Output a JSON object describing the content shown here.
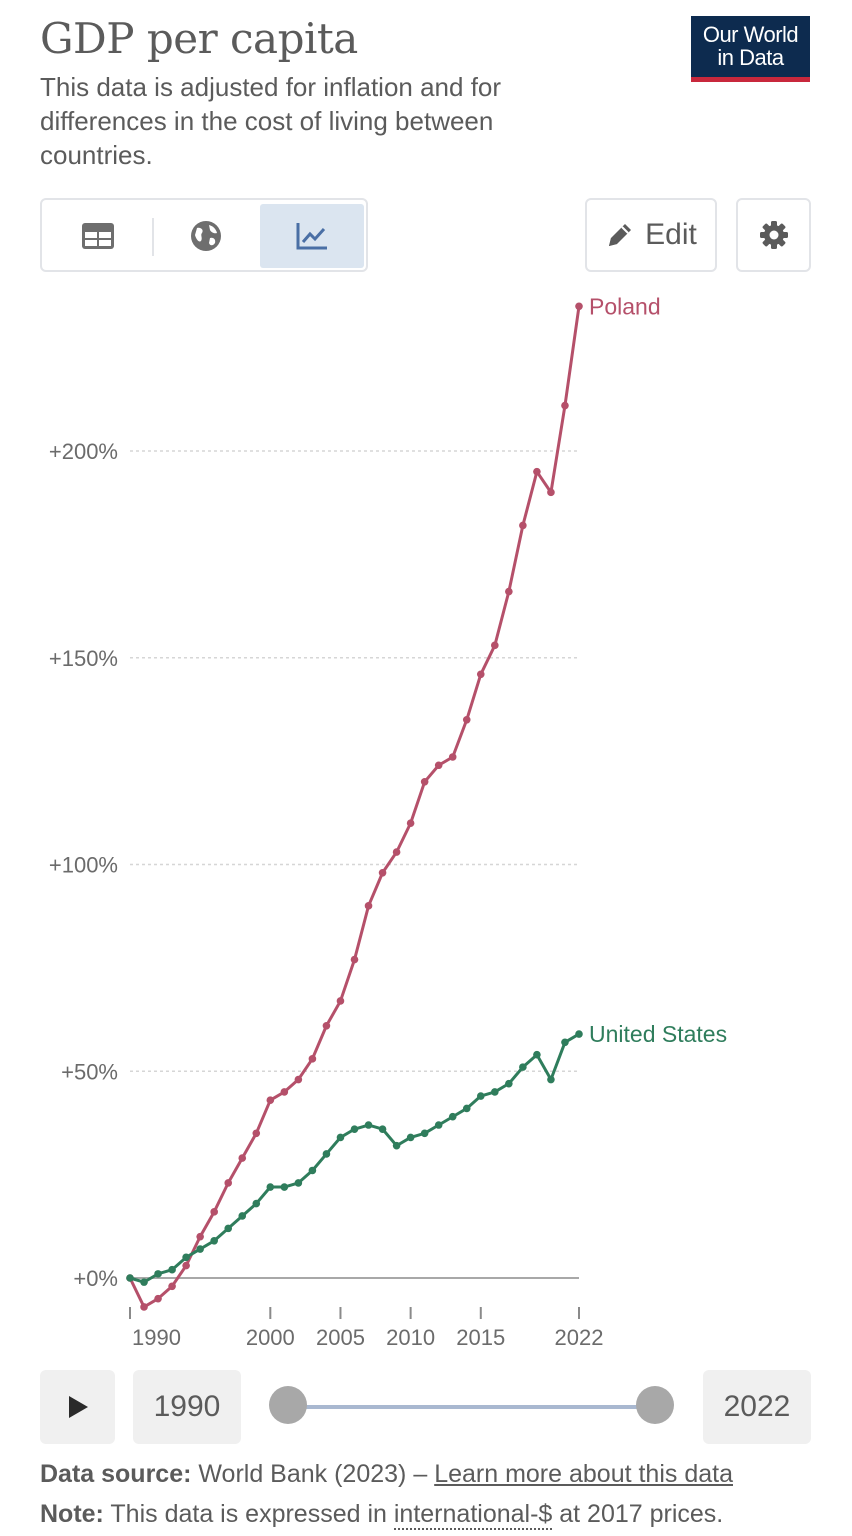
{
  "header": {
    "title": "GDP per capita",
    "subtitle": "This data is adjusted for inflation and for differences in the cost of living between countries.",
    "logo_line1": "Our World",
    "logo_line2": "in Data"
  },
  "toolbar": {
    "views": [
      "table",
      "map",
      "chart"
    ],
    "active_view": "chart",
    "edit_label": "Edit"
  },
  "colors": {
    "poland": "#b5506a",
    "united_states": "#2f7d5c",
    "logo_bg": "#0d2b4f",
    "logo_accent": "#c8283c",
    "active_tab": "#dbe5f0"
  },
  "chart_data": {
    "type": "line",
    "title": "GDP per capita",
    "ylim": [
      -7,
      235
    ],
    "xlim": [
      1990,
      2022
    ],
    "y_ticks": [
      0,
      50,
      100,
      150,
      200
    ],
    "y_tick_labels": [
      "+0%",
      "+50%",
      "+100%",
      "+150%",
      "+200%"
    ],
    "x_ticks": [
      1990,
      2000,
      2005,
      2010,
      2015,
      2022
    ],
    "x_tick_labels": [
      "1990",
      "2000",
      "2005",
      "2010",
      "2015",
      "2022"
    ],
    "grid": true,
    "x": [
      1990,
      1991,
      1992,
      1993,
      1994,
      1995,
      1996,
      1997,
      1998,
      1999,
      2000,
      2001,
      2002,
      2003,
      2004,
      2005,
      2006,
      2007,
      2008,
      2009,
      2010,
      2011,
      2012,
      2013,
      2014,
      2015,
      2016,
      2017,
      2018,
      2019,
      2020,
      2021,
      2022
    ],
    "series": [
      {
        "name": "Poland",
        "values": [
          0,
          -7,
          -5,
          -2,
          3,
          10,
          16,
          23,
          29,
          35,
          43,
          45,
          48,
          53,
          61,
          67,
          77,
          90,
          98,
          103,
          110,
          120,
          124,
          126,
          135,
          146,
          153,
          166,
          182,
          195,
          190,
          211,
          235
        ]
      },
      {
        "name": "United States",
        "values": [
          0,
          -1,
          1,
          2,
          5,
          7,
          9,
          12,
          15,
          18,
          22,
          22,
          23,
          26,
          30,
          34,
          36,
          37,
          36,
          32,
          34,
          35,
          37,
          39,
          41,
          44,
          45,
          47,
          51,
          54,
          48,
          57,
          59
        ]
      }
    ]
  },
  "timeline": {
    "start_year": "1990",
    "end_year": "2022"
  },
  "footer": {
    "source_label": "Data source:",
    "source_text": "World Bank (2023) – ",
    "source_link": "Learn more about this data",
    "note_label": "Note:",
    "note_text_before": "This data is expressed in ",
    "note_link": "international-$",
    "note_text_after": " at 2017 prices."
  }
}
